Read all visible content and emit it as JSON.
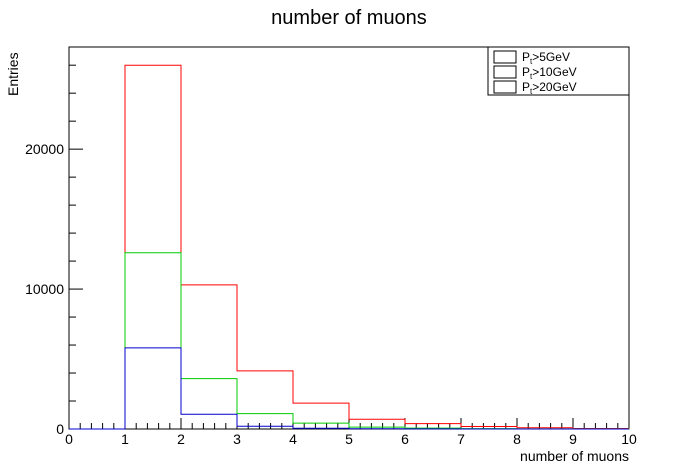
{
  "chart_data": {
    "type": "bar",
    "style": "step-histogram",
    "title": "number of muons",
    "xlabel": "number of muons",
    "ylabel": "Entries",
    "xlim": [
      0,
      10
    ],
    "ylim": [
      0,
      27300
    ],
    "x_ticks": [
      "0",
      "1",
      "2",
      "3",
      "4",
      "5",
      "6",
      "7",
      "8",
      "9",
      "10"
    ],
    "y_ticks": [
      {
        "value": 0,
        "label": "0"
      },
      {
        "value": 10000,
        "label": "10000"
      },
      {
        "value": 20000,
        "label": "20000"
      }
    ],
    "bin_edges": [
      0,
      1,
      2,
      3,
      4,
      5,
      6,
      7,
      8,
      9,
      10
    ],
    "series": [
      {
        "legend_main": "P",
        "legend_sub": "t",
        "legend_rest": ">5GeV",
        "color": "#ff0000",
        "values": [
          0,
          26000,
          10300,
          4150,
          1850,
          700,
          380,
          180,
          90,
          40
        ]
      },
      {
        "legend_main": "P",
        "legend_sub": "t",
        "legend_rest": ">10GeV",
        "color": "#00cc00",
        "values": [
          0,
          12600,
          3600,
          1100,
          420,
          130,
          60,
          25,
          10,
          5
        ]
      },
      {
        "legend_main": "P",
        "legend_sub": "t",
        "legend_rest": ">20GeV",
        "color": "#0000cc",
        "values": [
          0,
          5800,
          1050,
          200,
          50,
          15,
          5,
          2,
          1,
          0
        ]
      }
    ],
    "grid": false,
    "legend_position": "top-right"
  }
}
